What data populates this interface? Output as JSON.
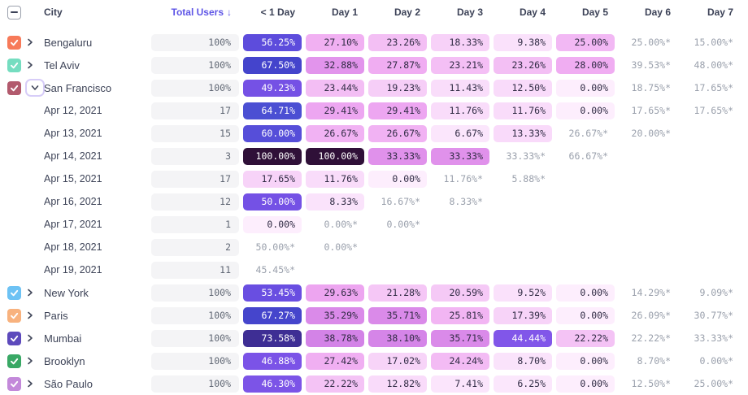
{
  "columns": {
    "select_all_state": "indeterminate",
    "city": "City",
    "total_users": {
      "label": "Total Users",
      "sort_icon": "↓"
    },
    "days": [
      "< 1 Day",
      "Day 1",
      "Day 2",
      "Day 3",
      "Day 4",
      "Day 5",
      "Day 6",
      "Day 7"
    ]
  },
  "rows": [
    {
      "type": "city",
      "label": "Bengaluru",
      "checkbox_color": "#f77a59",
      "expanded": false,
      "total": "100%",
      "cells": [
        "56.25%",
        "27.10%",
        "23.26%",
        "18.33%",
        "9.38%",
        "25.00%",
        "25.00%*",
        "15.00%*"
      ]
    },
    {
      "type": "city",
      "label": "Tel Aviv",
      "checkbox_color": "#75ddc0",
      "expanded": false,
      "total": "100%",
      "cells": [
        "67.50%",
        "32.88%",
        "27.87%",
        "23.21%",
        "23.26%",
        "28.00%",
        "39.53%*",
        "48.00%*"
      ]
    },
    {
      "type": "city",
      "label": "San Francisco",
      "checkbox_color": "#b25a6d",
      "expanded": true,
      "total": "100%",
      "cells": [
        "49.23%",
        "23.44%",
        "19.23%",
        "11.43%",
        "12.50%",
        "0.00%",
        "18.75%*",
        "17.65%*"
      ]
    },
    {
      "type": "date",
      "label": "Apr 12, 2021",
      "total": "17",
      "cells": [
        "64.71%",
        "29.41%",
        "29.41%",
        "11.76%",
        "11.76%",
        "0.00%",
        "17.65%*",
        "17.65%*"
      ]
    },
    {
      "type": "date",
      "label": "Apr 13, 2021",
      "total": "15",
      "cells": [
        "60.00%",
        "26.67%",
        "26.67%",
        "6.67%",
        "13.33%",
        "26.67%*",
        "20.00%*",
        null
      ]
    },
    {
      "type": "date",
      "label": "Apr 14, 2021",
      "total": "3",
      "cells": [
        "100.00%",
        "100.00%",
        "33.33%",
        "33.33%",
        "33.33%*",
        "66.67%*",
        null,
        null
      ]
    },
    {
      "type": "date",
      "label": "Apr 15, 2021",
      "total": "17",
      "cells": [
        "17.65%",
        "11.76%",
        "0.00%",
        "11.76%*",
        "5.88%*",
        null,
        null,
        null
      ]
    },
    {
      "type": "date",
      "label": "Apr 16, 2021",
      "total": "12",
      "cells": [
        "50.00%",
        "8.33%",
        "16.67%*",
        "8.33%*",
        null,
        null,
        null,
        null
      ]
    },
    {
      "type": "date",
      "label": "Apr 17, 2021",
      "total": "1",
      "cells": [
        "0.00%",
        "0.00%*",
        "0.00%*",
        null,
        null,
        null,
        null,
        null
      ]
    },
    {
      "type": "date",
      "label": "Apr 18, 2021",
      "total": "2",
      "cells": [
        "50.00%*",
        "0.00%*",
        null,
        null,
        null,
        null,
        null,
        null
      ]
    },
    {
      "type": "date",
      "label": "Apr 19, 2021",
      "total": "11",
      "cells": [
        "45.45%*",
        null,
        null,
        null,
        null,
        null,
        null,
        null
      ]
    },
    {
      "type": "city",
      "label": "New York",
      "checkbox_color": "#6dc2f4",
      "expanded": false,
      "total": "100%",
      "cells": [
        "53.45%",
        "29.63%",
        "21.28%",
        "20.59%",
        "9.52%",
        "0.00%",
        "14.29%*",
        "9.09%*"
      ]
    },
    {
      "type": "city",
      "label": "Paris",
      "checkbox_color": "#f8b27e",
      "expanded": false,
      "total": "100%",
      "cells": [
        "67.27%",
        "35.29%",
        "35.71%",
        "25.81%",
        "17.39%",
        "0.00%",
        "26.09%*",
        "30.77%*"
      ]
    },
    {
      "type": "city",
      "label": "Mumbai",
      "checkbox_color": "#5d4abc",
      "expanded": false,
      "total": "100%",
      "cells": [
        "73.58%",
        "38.78%",
        "38.10%",
        "35.71%",
        "44.44%",
        "22.22%",
        "22.22%*",
        "33.33%*"
      ]
    },
    {
      "type": "city",
      "label": "Brooklyn",
      "checkbox_color": "#39a865",
      "expanded": false,
      "total": "100%",
      "cells": [
        "46.88%",
        "27.42%",
        "17.02%",
        "24.24%",
        "8.70%",
        "0.00%",
        "8.70%*",
        "0.00%*"
      ]
    },
    {
      "type": "city",
      "label": "São Paulo",
      "checkbox_color": "#c389da",
      "expanded": false,
      "total": "100%",
      "cells": [
        "46.30%",
        "22.22%",
        "12.82%",
        "7.41%",
        "6.25%",
        "0.00%",
        "12.50%*",
        "25.00%*"
      ]
    }
  ],
  "colors": {
    "accent": "#5e55e6",
    "header_text": "#3c4257",
    "row_text": "#3d4357",
    "muted_value_text": "#9aa0ac",
    "cell_dark_text": "#302b44",
    "cell_light_text": "#ffffff",
    "total_pill_bg": "#f4f4f6",
    "total_text": "#606774",
    "white_text_threshold": 0.42,
    "heat_scale": [
      [
        0.0,
        "#fdeefd"
      ],
      [
        0.07,
        "#fbe6fc"
      ],
      [
        0.12,
        "#f9dcfa"
      ],
      [
        0.18,
        "#f7d2f8"
      ],
      [
        0.21,
        "#f5c8f6"
      ],
      [
        0.24,
        "#f3bcf4"
      ],
      [
        0.28,
        "#f0adf2"
      ],
      [
        0.31,
        "#ea9fef"
      ],
      [
        0.34,
        "#dd8dea"
      ],
      [
        0.39,
        "#d383e7"
      ],
      [
        0.42,
        "#9a63ee"
      ],
      [
        0.445,
        "#8056e9"
      ],
      [
        0.48,
        "#7852e6"
      ],
      [
        0.52,
        "#6f4fe3"
      ],
      [
        0.57,
        "#5a4cdb"
      ],
      [
        0.62,
        "#5350d8"
      ],
      [
        0.65,
        "#4a4fd3"
      ],
      [
        0.68,
        "#4342ca"
      ],
      [
        0.74,
        "#3e2d90"
      ],
      [
        1.0,
        "#2f1038"
      ]
    ]
  }
}
